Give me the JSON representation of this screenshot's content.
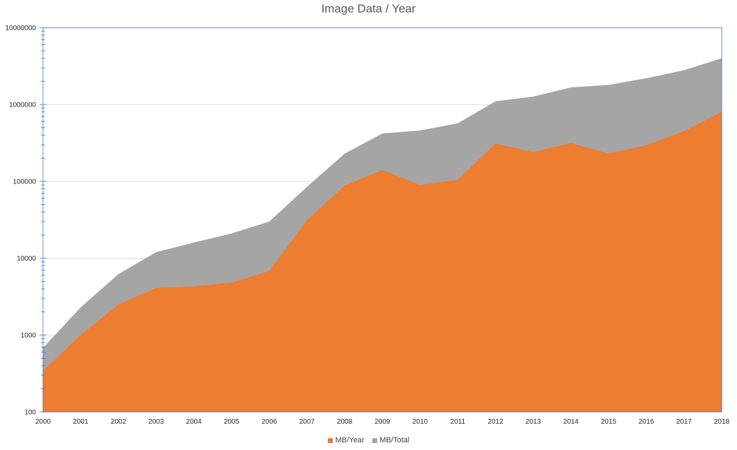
{
  "chart_data": {
    "type": "area",
    "title": "Image Data / Year",
    "xlabel": "",
    "ylabel": "",
    "y_scale": "log",
    "ylim": [
      100,
      10000000
    ],
    "y_ticks": [
      "100",
      "1000",
      "10000",
      "100000",
      "1000000",
      "10000000"
    ],
    "x": [
      "2000",
      "2001",
      "2002",
      "2003",
      "2004",
      "2005",
      "2006",
      "2007",
      "2008",
      "2009",
      "2010",
      "2011",
      "2012",
      "2013",
      "2014",
      "2015",
      "2016",
      "2017",
      "2018"
    ],
    "series": [
      {
        "name": "MB/Year",
        "color": "#ED7D31",
        "values": [
          340,
          1000,
          2500,
          4100,
          4300,
          4800,
          6800,
          31000,
          88000,
          140000,
          90000,
          105000,
          310000,
          240000,
          315000,
          230000,
          295000,
          450000,
          800000
        ]
      },
      {
        "name": "MB/Total",
        "color": "#A5A5A5",
        "values": [
          680,
          2300,
          6200,
          12000,
          16000,
          21000,
          30000,
          85000,
          230000,
          420000,
          460000,
          570000,
          1100000,
          1270000,
          1670000,
          1800000,
          2200000,
          2800000,
          4000000
        ]
      }
    ],
    "grid": true,
    "legend": "bottom"
  }
}
